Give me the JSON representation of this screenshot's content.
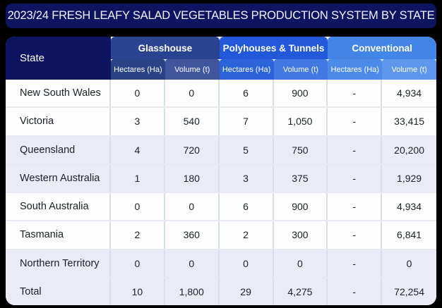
{
  "title": "2023/24 FRESH LEAFY SALAD VEGETABLES PRODUCTION SYSTEM BY STATE",
  "header": {
    "state": "State",
    "groups": [
      "Glasshouse",
      "Polyhouses & Tunnels",
      "Conventional"
    ],
    "sub_headers": [
      "Hectares (Ha)",
      "Volume (t)"
    ]
  },
  "chart_data": {
    "type": "table",
    "title": "2023/24 FRESH LEAFY SALAD VEGETABLES PRODUCTION SYSTEM BY STATE",
    "column_groups": [
      "Glasshouse",
      "Polyhouses & Tunnels",
      "Conventional"
    ],
    "columns": [
      "State",
      "Glasshouse Hectares (Ha)",
      "Glasshouse Volume (t)",
      "Polyhouses & Tunnels Hectares (Ha)",
      "Polyhouses & Tunnels Volume (t)",
      "Conventional Hectares (Ha)",
      "Conventional Volume (t)"
    ],
    "rows": [
      [
        "New South Wales",
        "0",
        "0",
        "6",
        "900",
        "-",
        "4,934"
      ],
      [
        "Victoria",
        "3",
        "540",
        "7",
        "1,050",
        "-",
        "33,415"
      ],
      [
        "Queensland",
        "4",
        "720",
        "5",
        "750",
        "-",
        "20,200"
      ],
      [
        "Western Australia",
        "1",
        "180",
        "3",
        "375",
        "-",
        "1,929"
      ],
      [
        "South Australia",
        "0",
        "0",
        "6",
        "900",
        "-",
        "4,934"
      ],
      [
        "Tasmania",
        "2",
        "360",
        "2",
        "300",
        "-",
        "6,841"
      ],
      [
        "Northern Territory",
        "0",
        "0",
        "0",
        "0",
        "-",
        "0"
      ],
      [
        "Total",
        "10",
        "1,800",
        "29",
        "4,275",
        "-",
        "72,254"
      ]
    ]
  },
  "colors": {
    "background": "#010101",
    "title_bar": "#0d1563",
    "state_header": "#0d1563",
    "glasshouse": "#2b4492",
    "glasshouse_sub_hectares": "#2b4285",
    "glasshouse_sub_volume": "#41549e",
    "polyhouses": "#2259db",
    "polyhouses_sub_hectares": "#2b63da",
    "polyhouses_sub_volume": "#4278e2",
    "conventional": "#4384e7",
    "conventional_sub_hectares": "#4c8ae9",
    "conventional_sub_volume": "#5e96ec",
    "row_white": "#fdfdfe",
    "row_shaded": "#e9ecf6",
    "header_text": "#ffffff",
    "body_text": "#1d2026"
  }
}
